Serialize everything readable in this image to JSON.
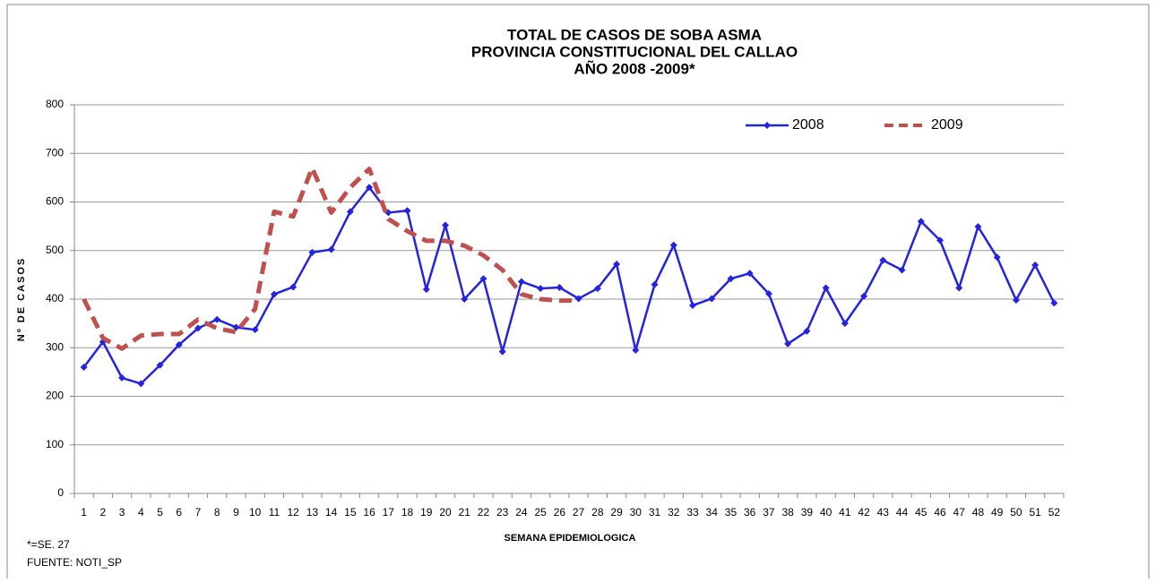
{
  "chart_data": {
    "type": "line",
    "title": [
      "TOTAL DE CASOS DE SOBA ASMA",
      "PROVINCIA CONSTITUCIONAL DEL CALLAO",
      "AÑO 2008 -2009*"
    ],
    "y_label": "Nº DE CASOS",
    "x_label": "SEMANA EPIDEMIOLOGICA",
    "notes": [
      "*=SE. 27",
      "FUENTE: NOTI_SP"
    ],
    "categories": [
      1,
      2,
      3,
      4,
      5,
      6,
      7,
      8,
      9,
      10,
      11,
      12,
      13,
      14,
      15,
      16,
      17,
      18,
      19,
      20,
      21,
      22,
      23,
      24,
      25,
      26,
      27,
      28,
      29,
      30,
      31,
      32,
      33,
      34,
      35,
      36,
      37,
      38,
      39,
      40,
      41,
      42,
      43,
      44,
      45,
      46,
      47,
      48,
      49,
      50,
      51,
      52
    ],
    "series": [
      {
        "name": "2008",
        "color": "#2323e0",
        "dash": false,
        "markers": true,
        "values": [
          260,
          312,
          238,
          226,
          264,
          306,
          340,
          358,
          342,
          337,
          410,
          425,
          496,
          502,
          580,
          630,
          578,
          582,
          420,
          552,
          400,
          442,
          292,
          436,
          422,
          424,
          401,
          422,
          472,
          295,
          430,
          511,
          387,
          401,
          442,
          453,
          411,
          308,
          334,
          423,
          350,
          406,
          480,
          460,
          560,
          521,
          423,
          549,
          486,
          398,
          470,
          392
        ]
      },
      {
        "name": "2009",
        "color": "#c0504d",
        "dash": true,
        "markers": false,
        "values": [
          400,
          320,
          298,
          325,
          328,
          328,
          358,
          340,
          332,
          380,
          580,
          570,
          670,
          578,
          630,
          668,
          565,
          540,
          520,
          520,
          510,
          490,
          460,
          410,
          400,
          397,
          397,
          null,
          null,
          null,
          null,
          null,
          null,
          null,
          null,
          null,
          null,
          null,
          null,
          null,
          null,
          null,
          null,
          null,
          null,
          null,
          null,
          null,
          null,
          null,
          null,
          null
        ]
      }
    ],
    "ylim": [
      0,
      800
    ],
    "yticks": [
      0,
      100,
      200,
      300,
      400,
      500,
      600,
      700,
      800
    ],
    "grid": true,
    "legend": "top-right"
  }
}
